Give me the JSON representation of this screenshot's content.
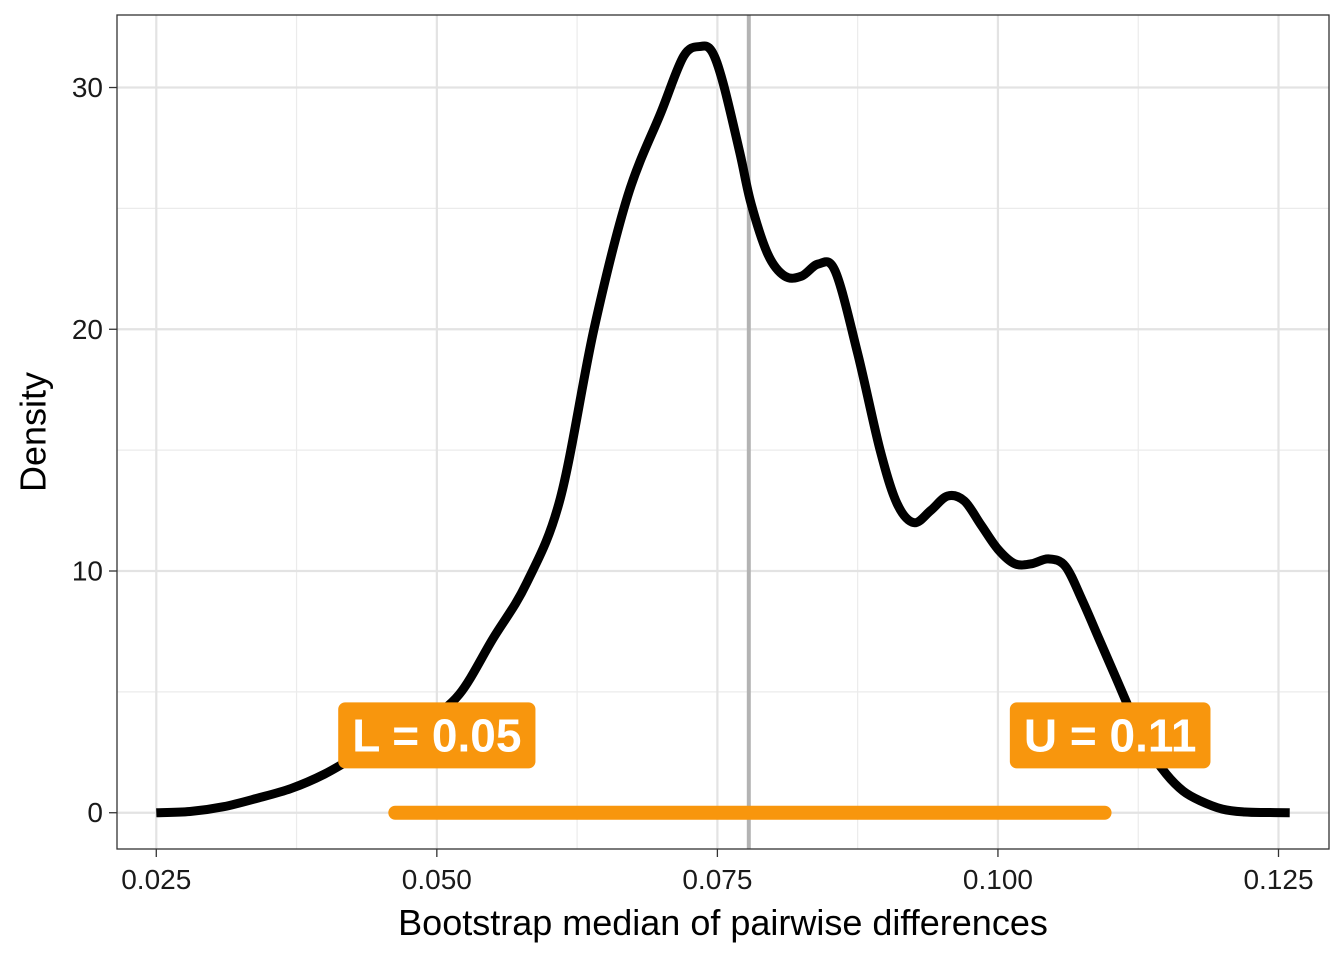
{
  "chart_data": {
    "type": "line",
    "title": "",
    "xlabel": "Bootstrap median of pairwise differences",
    "ylabel": "Density",
    "xlim": [
      0.0215,
      0.1295
    ],
    "ylim": [
      -1.5,
      33
    ],
    "x_ticks": [
      0.025,
      0.05,
      0.075,
      0.1,
      0.125
    ],
    "x_tick_labels": [
      "0.025",
      "0.050",
      "0.075",
      "0.100",
      "0.125"
    ],
    "y_ticks": [
      0,
      10,
      20,
      30
    ],
    "y_tick_labels": [
      "0",
      "10",
      "20",
      "30"
    ],
    "grid": true,
    "series": [
      {
        "type": "density",
        "color": "#000000",
        "x": [
          0.025,
          0.028,
          0.031,
          0.034,
          0.037,
          0.04,
          0.043,
          0.046,
          0.049,
          0.052,
          0.055,
          0.058,
          0.061,
          0.064,
          0.067,
          0.07,
          0.072,
          0.0735,
          0.0745,
          0.0755,
          0.077,
          0.078,
          0.0795,
          0.081,
          0.0825,
          0.084,
          0.0855,
          0.0875,
          0.0895,
          0.091,
          0.0925,
          0.094,
          0.0955,
          0.097,
          0.0985,
          0.1,
          0.1015,
          0.103,
          0.1045,
          0.106,
          0.1075,
          0.109,
          0.1105,
          0.112,
          0.1135,
          0.115,
          0.1165,
          0.118,
          0.12,
          0.122,
          0.124,
          0.126
        ],
        "y": [
          0,
          0.05,
          0.25,
          0.6,
          1.0,
          1.6,
          2.4,
          3.2,
          3.8,
          4.9,
          7.2,
          9.5,
          13.0,
          20.0,
          25.5,
          29.0,
          31.3,
          31.7,
          31.5,
          30.2,
          27.3,
          25.2,
          23.1,
          22.2,
          22.2,
          22.7,
          22.4,
          19.0,
          15.0,
          12.8,
          12.0,
          12.5,
          13.1,
          12.9,
          11.9,
          10.9,
          10.3,
          10.3,
          10.5,
          10.2,
          8.8,
          7.2,
          5.6,
          4.0,
          2.6,
          1.6,
          0.9,
          0.5,
          0.15,
          0.03,
          0.01,
          0.0
        ]
      }
    ],
    "reference_line": {
      "x": 0.0778,
      "color": "#b3b3b3"
    },
    "interval": {
      "lower": 0.0463,
      "upper": 0.1095,
      "y": 0,
      "color": "#f8960d"
    },
    "labels": [
      {
        "text": "L =  0.05",
        "x": 0.05,
        "y": 3.2,
        "fill": "#f8960d",
        "text_color": "#ffffff"
      },
      {
        "text": "U =  0.11",
        "x": 0.11,
        "y": 3.2,
        "fill": "#f8960d",
        "text_color": "#ffffff"
      }
    ]
  }
}
